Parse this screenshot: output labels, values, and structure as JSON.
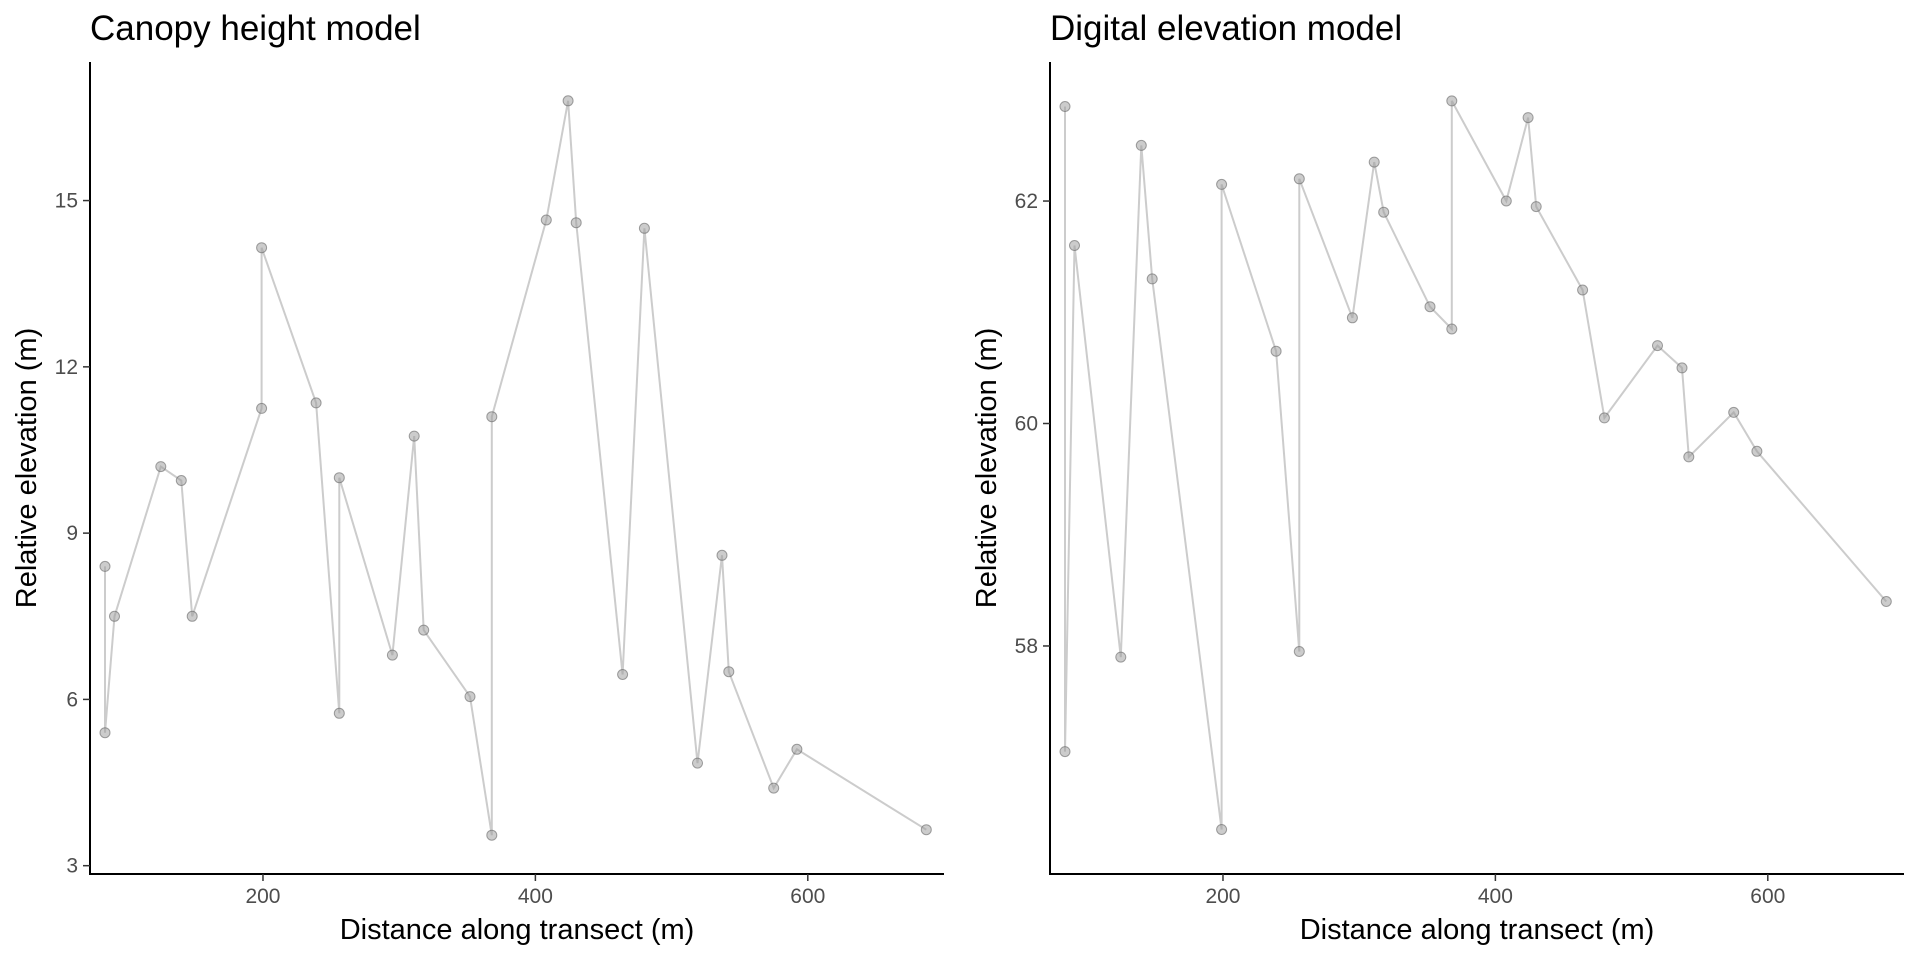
{
  "chart_data": [
    {
      "type": "line",
      "title": "Canopy height model",
      "xlabel": "Distance along transect (m)",
      "ylabel": "Relative elevation (m)",
      "xlim": [
        73,
        700
      ],
      "ylim": [
        2.85,
        17.5
      ],
      "xticks": [
        200,
        400,
        600
      ],
      "yticks": [
        3,
        6,
        9,
        12,
        15
      ],
      "grid": false,
      "markers": true,
      "color": "#999999",
      "series": [
        {
          "x": [
            84,
            84,
            91,
            125,
            140,
            148,
            199,
            199,
            239,
            256,
            256,
            295,
            311,
            318,
            352,
            368,
            368,
            408,
            424,
            430,
            464,
            480,
            519,
            537,
            542,
            575,
            592,
            687
          ],
          "y": [
            8.4,
            5.4,
            7.5,
            10.2,
            9.95,
            7.5,
            11.25,
            14.15,
            11.35,
            5.75,
            10.0,
            6.8,
            10.75,
            7.25,
            6.05,
            3.55,
            11.1,
            14.65,
            16.8,
            14.6,
            6.45,
            14.5,
            4.85,
            8.6,
            6.5,
            4.4,
            5.1,
            3.65
          ]
        }
      ]
    },
    {
      "type": "line",
      "title": "Digital elevation model",
      "xlabel": "Distance along transect (m)",
      "ylabel": "Relative elevation (m)",
      "xlim": [
        73,
        700
      ],
      "ylim": [
        55.95,
        63.25
      ],
      "xticks": [
        200,
        400,
        600
      ],
      "yticks": [
        58,
        60,
        62
      ],
      "grid": false,
      "markers": true,
      "color": "#999999",
      "series": [
        {
          "x": [
            84,
            84,
            91,
            125,
            140,
            148,
            199,
            199,
            239,
            256,
            256,
            295,
            311,
            318,
            352,
            368,
            368,
            408,
            424,
            430,
            464,
            480,
            519,
            537,
            542,
            575,
            592,
            687
          ],
          "y": [
            62.85,
            57.05,
            61.6,
            57.9,
            62.5,
            61.3,
            56.35,
            62.15,
            60.65,
            57.95,
            62.2,
            60.95,
            62.35,
            61.9,
            61.05,
            60.85,
            62.9,
            62.0,
            62.75,
            61.95,
            61.2,
            60.05,
            60.7,
            60.5,
            59.7,
            60.1,
            59.75,
            58.4
          ]
        }
      ]
    }
  ]
}
